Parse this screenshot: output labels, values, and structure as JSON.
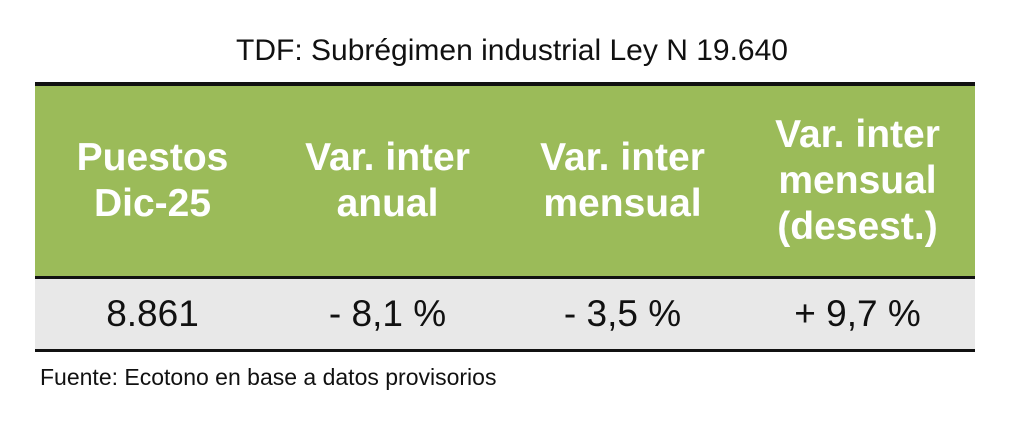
{
  "title": "TDF: Subrégimen industrial Ley N 19.640",
  "table": {
    "header": [
      [
        "Puestos",
        "Dic-25"
      ],
      [
        "Var. inter",
        "anual"
      ],
      [
        "Var. inter",
        "mensual"
      ],
      [
        "Var. inter",
        "mensual",
        "(desest.)"
      ]
    ],
    "rows": [
      [
        "8.861",
        "- 8,1 %",
        "- 3,5 %",
        "+ 9,7 %"
      ]
    ]
  },
  "footer": "Fuente: Ecotono en base a datos provisorios"
}
